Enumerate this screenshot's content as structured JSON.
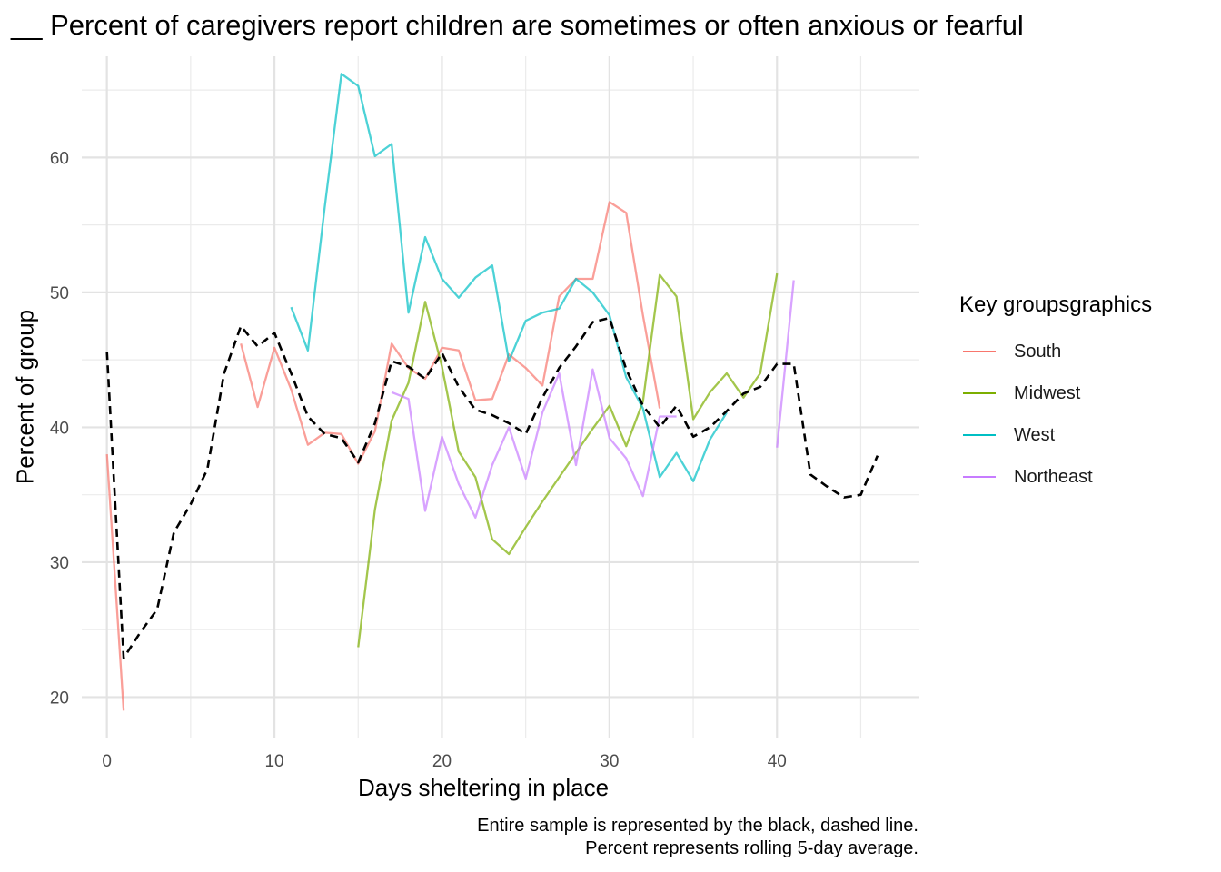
{
  "chart_data": {
    "type": "line",
    "title": "__ Percent of caregivers report children are sometimes or often anxious or fearful",
    "xlabel": "Days sheltering in place",
    "ylabel": "Percent of group",
    "caption": [
      "Entire sample is represented by the black, dashed line.",
      "Percent represents rolling 5-day average."
    ],
    "xlim": [
      -1.5,
      48.5
    ],
    "ylim": [
      17,
      67.5
    ],
    "x_ticks": [
      0,
      10,
      20,
      30,
      40
    ],
    "y_ticks": [
      20,
      30,
      40,
      50,
      60
    ],
    "grid": true,
    "legend": {
      "title": "Key groupsgraphics",
      "position": "right"
    },
    "series": [
      {
        "name": "South",
        "color": "#F8766D",
        "style": "solid",
        "x": [
          0,
          1
        ],
        "y": [
          38.0,
          19.0
        ]
      },
      {
        "name": "South",
        "color": "#F8766D",
        "style": "solid",
        "x": [
          8,
          9,
          10,
          11,
          12,
          13,
          14,
          15,
          16,
          17,
          18,
          19,
          20,
          21,
          22,
          23,
          24,
          25,
          26,
          27,
          28,
          29,
          30,
          31,
          32,
          33
        ],
        "y": [
          46.2,
          41.5,
          45.9,
          42.8,
          38.7,
          39.6,
          39.5,
          37.3,
          39.7,
          46.2,
          44.4,
          43.6,
          45.9,
          45.7,
          42.0,
          42.1,
          45.4,
          44.4,
          43.1,
          49.7,
          51.0,
          51.0,
          56.7,
          55.9,
          48.3,
          41.4
        ]
      },
      {
        "name": "Midwest",
        "color": "#7CAE00",
        "style": "solid",
        "x": [
          15,
          16,
          17,
          18,
          19,
          20,
          21,
          22,
          23,
          24,
          25,
          26,
          27,
          28,
          29,
          30,
          31,
          32,
          33,
          34,
          35,
          36,
          37,
          38,
          39,
          40
        ],
        "y": [
          23.7,
          33.9,
          40.5,
          43.3,
          49.3,
          44.5,
          38.2,
          36.3,
          31.7,
          30.6,
          32.6,
          34.5,
          36.3,
          38.1,
          39.9,
          41.6,
          38.6,
          41.9,
          51.3,
          49.7,
          40.6,
          42.6,
          44.0,
          42.2,
          44.0,
          51.4
        ]
      },
      {
        "name": "West",
        "color": "#00BFC4",
        "style": "solid",
        "x": [
          11,
          12,
          13,
          14,
          15,
          16,
          17,
          18,
          19,
          20,
          21,
          22,
          23,
          24,
          25,
          26,
          27,
          28,
          29,
          30,
          31,
          32,
          33,
          34,
          35,
          36,
          37
        ],
        "y": [
          48.9,
          45.7,
          56.3,
          66.2,
          65.3,
          60.1,
          61.0,
          48.5,
          54.1,
          51.0,
          49.6,
          51.1,
          52.0,
          44.9,
          47.9,
          48.5,
          48.8,
          51.0,
          50.0,
          48.3,
          43.7,
          41.4,
          36.3,
          38.1,
          36.0,
          39.1,
          41.1
        ]
      },
      {
        "name": "Northeast",
        "color": "#C77CFF",
        "style": "solid",
        "x": [
          17,
          18,
          19,
          20,
          21,
          22,
          23,
          24,
          25,
          26,
          27,
          28,
          29,
          30,
          31,
          32,
          33,
          34
        ],
        "y": [
          42.6,
          42.1,
          33.8,
          39.3,
          35.8,
          33.3,
          37.2,
          40.0,
          36.2,
          41.1,
          44.0,
          37.2,
          44.3,
          39.2,
          37.7,
          34.9,
          40.8,
          40.8
        ]
      },
      {
        "name": "Northeast",
        "color": "#C77CFF",
        "style": "solid",
        "x": [
          40,
          41
        ],
        "y": [
          38.5,
          50.9
        ]
      },
      {
        "name": "",
        "color": "#000000",
        "style": "dashed",
        "x": [
          0,
          1,
          2,
          3,
          4,
          5,
          6,
          7,
          8,
          9,
          10,
          11,
          12,
          13,
          14,
          15,
          16,
          17,
          18,
          19,
          20,
          21,
          22,
          23,
          24,
          25,
          26,
          27,
          28,
          29,
          30,
          31,
          32,
          33,
          34,
          35,
          36,
          37,
          38,
          39,
          40,
          41,
          42,
          43,
          44,
          45,
          46
        ],
        "y": [
          45.6,
          22.9,
          24.8,
          26.5,
          32.2,
          34.3,
          36.9,
          44.0,
          47.5,
          46.0,
          47.0,
          44.0,
          40.8,
          39.5,
          39.2,
          37.4,
          40.3,
          44.9,
          44.5,
          43.6,
          45.5,
          43.0,
          41.3,
          40.9,
          40.3,
          39.5,
          42.2,
          44.4,
          46.0,
          47.8,
          48.1,
          44.3,
          41.6,
          40.0,
          41.6,
          39.3,
          40.0,
          41.2,
          42.5,
          43.0,
          44.7,
          44.7,
          36.5,
          35.6,
          34.8,
          35.0,
          37.9
        ]
      }
    ]
  },
  "legend_items": [
    {
      "label": "South",
      "color": "#F8766D"
    },
    {
      "label": "Midwest",
      "color": "#7CAE00"
    },
    {
      "label": "West",
      "color": "#00BFC4"
    },
    {
      "label": "Northeast",
      "color": "#C77CFF"
    }
  ]
}
